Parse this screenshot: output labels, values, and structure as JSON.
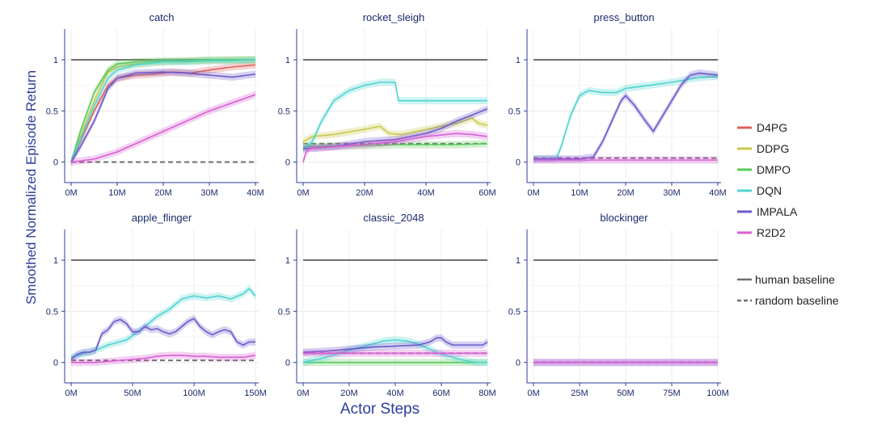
{
  "chart_data": {
    "type": "line",
    "ylabel": "Smoothed Normalized Episode Return",
    "xlabel": "Actor Steps",
    "colors": {
      "D4PG": "#e0605a",
      "DDPG": "#c9c94a",
      "DMPO": "#5cc95a",
      "DQN": "#4fd4d0",
      "IMPALA": "#6a5acd",
      "R2D2": "#d95fd4",
      "human": "#6e6e6e",
      "random": "#6e6e6e"
    },
    "legend": {
      "series": [
        "D4PG",
        "DDPG",
        "DMPO",
        "DQN",
        "IMPALA",
        "R2D2"
      ],
      "baselines": [
        "human baseline",
        "random baseline"
      ]
    },
    "panels": [
      {
        "title": "catch",
        "xticks": [
          "0M",
          "10M",
          "20M",
          "30M",
          "40M"
        ],
        "xlim": [
          0,
          40
        ],
        "ylim": [
          -0.2,
          1.3
        ],
        "yticks": [
          "0",
          "0.5",
          "1"
        ],
        "human": 1,
        "random": 0,
        "series": [
          {
            "name": "D4PG",
            "x": [
              0,
              2,
              5,
              8,
              10,
              14,
              18,
              22,
              26,
              30,
              35,
              40
            ],
            "y": [
              0,
              0.2,
              0.5,
              0.75,
              0.82,
              0.85,
              0.86,
              0.88,
              0.87,
              0.9,
              0.93,
              0.95
            ]
          },
          {
            "name": "DDPG",
            "x": [
              0,
              2,
              5,
              8,
              10,
              14,
              20,
              25,
              30,
              35,
              40
            ],
            "y": [
              0,
              0.25,
              0.6,
              0.88,
              0.93,
              0.96,
              0.98,
              0.99,
              0.99,
              1.0,
              1.0
            ]
          },
          {
            "name": "DMPO",
            "x": [
              0,
              2,
              5,
              8,
              10,
              14,
              20,
              25,
              30,
              35,
              40
            ],
            "y": [
              0,
              0.3,
              0.68,
              0.9,
              0.96,
              0.98,
              0.99,
              0.99,
              1.0,
              1.0,
              1.0
            ]
          },
          {
            "name": "DQN",
            "x": [
              0,
              2,
              5,
              8,
              10,
              14,
              20,
              25,
              30,
              35,
              40
            ],
            "y": [
              0,
              0.22,
              0.55,
              0.82,
              0.9,
              0.95,
              0.98,
              0.98,
              0.99,
              0.99,
              1.0
            ]
          },
          {
            "name": "IMPALA",
            "x": [
              0,
              2,
              5,
              8,
              10,
              14,
              20,
              25,
              30,
              35,
              40
            ],
            "y": [
              0,
              0.15,
              0.4,
              0.72,
              0.82,
              0.87,
              0.88,
              0.87,
              0.85,
              0.83,
              0.86
            ]
          },
          {
            "name": "R2D2",
            "x": [
              0,
              5,
              10,
              15,
              20,
              25,
              30,
              35,
              40
            ],
            "y": [
              0,
              0.03,
              0.1,
              0.2,
              0.3,
              0.4,
              0.5,
              0.58,
              0.66
            ]
          }
        ]
      },
      {
        "title": "rocket_sleigh",
        "xticks": [
          "0M",
          "20M",
          "40M",
          "60M"
        ],
        "xlim": [
          0,
          60
        ],
        "ylim": [
          -0.2,
          1.3
        ],
        "yticks": [
          "0",
          "0.5",
          "1"
        ],
        "human": 1,
        "random": 0.18,
        "series": [
          {
            "name": "DDPG",
            "x": [
              0,
              3,
              10,
              20,
              25,
              28,
              32,
              40,
              50,
              55,
              57,
              60
            ],
            "y": [
              0.2,
              0.25,
              0.27,
              0.32,
              0.35,
              0.28,
              0.27,
              0.32,
              0.38,
              0.43,
              0.38,
              0.36
            ]
          },
          {
            "name": "DMPO",
            "x": [
              0,
              10,
              20,
              30,
              40,
              50,
              60
            ],
            "y": [
              0.15,
              0.16,
              0.16,
              0.17,
              0.17,
              0.17,
              0.18
            ]
          },
          {
            "name": "DQN",
            "x": [
              0,
              3,
              6,
              10,
              15,
              20,
              25,
              30,
              31,
              35,
              40,
              45,
              50,
              55,
              60
            ],
            "y": [
              0.12,
              0.2,
              0.4,
              0.6,
              0.7,
              0.75,
              0.78,
              0.78,
              0.6,
              0.6,
              0.6,
              0.6,
              0.6,
              0.6,
              0.6
            ]
          },
          {
            "name": "IMPALA",
            "x": [
              0,
              10,
              20,
              30,
              40,
              45,
              50,
              55,
              60
            ],
            "y": [
              0.13,
              0.15,
              0.2,
              0.22,
              0.28,
              0.33,
              0.4,
              0.46,
              0.52
            ]
          },
          {
            "name": "R2D2",
            "x": [
              0,
              1,
              2,
              10,
              20,
              30,
              40,
              50,
              55,
              60
            ],
            "y": [
              0.0,
              0.1,
              0.13,
              0.15,
              0.17,
              0.2,
              0.25,
              0.28,
              0.27,
              0.25
            ]
          }
        ]
      },
      {
        "title": "press_button",
        "xticks": [
          "0M",
          "10M",
          "20M",
          "30M",
          "40M"
        ],
        "xlim": [
          0,
          40
        ],
        "ylim": [
          -0.2,
          1.3
        ],
        "yticks": [
          "0",
          "0.5",
          "1"
        ],
        "human": 1,
        "random": 0.04,
        "series": [
          {
            "name": "DQN",
            "x": [
              0,
              5,
              6,
              8,
              10,
              12,
              15,
              18,
              20,
              25,
              30,
              35,
              40
            ],
            "y": [
              0.03,
              0.04,
              0.15,
              0.45,
              0.65,
              0.7,
              0.68,
              0.68,
              0.72,
              0.75,
              0.78,
              0.82,
              0.84
            ]
          },
          {
            "name": "IMPALA",
            "x": [
              0,
              10,
              13,
              15,
              17,
              19,
              20,
              22,
              24,
              26,
              28,
              30,
              32,
              34,
              36,
              40
            ],
            "y": [
              0.03,
              0.03,
              0.05,
              0.2,
              0.4,
              0.6,
              0.65,
              0.55,
              0.42,
              0.3,
              0.45,
              0.6,
              0.75,
              0.85,
              0.87,
              0.85
            ]
          },
          {
            "name": "R2D2",
            "x": [
              0,
              10,
              20,
              30,
              40
            ],
            "y": [
              0.02,
              0.02,
              0.02,
              0.02,
              0.02
            ]
          }
        ]
      },
      {
        "title": "apple_flinger",
        "xticks": [
          "0M",
          "50M",
          "100M",
          "150M"
        ],
        "xlim": [
          0,
          150
        ],
        "ylim": [
          -0.2,
          1.3
        ],
        "yticks": [
          "0",
          "0.5",
          "1"
        ],
        "human": 1,
        "random": 0.02,
        "series": [
          {
            "name": "DQN",
            "x": [
              0,
              20,
              30,
              45,
              60,
              70,
              80,
              90,
              100,
              110,
              120,
              130,
              140,
              145,
              150
            ],
            "y": [
              0.05,
              0.12,
              0.17,
              0.22,
              0.35,
              0.45,
              0.52,
              0.62,
              0.65,
              0.63,
              0.65,
              0.62,
              0.67,
              0.72,
              0.65
            ]
          },
          {
            "name": "IMPALA",
            "x": [
              0,
              5,
              10,
              15,
              20,
              25,
              30,
              35,
              40,
              45,
              50,
              55,
              60,
              65,
              70,
              75,
              80,
              85,
              90,
              95,
              100,
              105,
              110,
              115,
              120,
              125,
              130,
              135,
              140,
              145,
              150
            ],
            "y": [
              0.03,
              0.08,
              0.1,
              0.1,
              0.12,
              0.28,
              0.32,
              0.4,
              0.42,
              0.38,
              0.3,
              0.3,
              0.35,
              0.32,
              0.33,
              0.3,
              0.28,
              0.3,
              0.35,
              0.4,
              0.43,
              0.35,
              0.3,
              0.27,
              0.3,
              0.32,
              0.3,
              0.2,
              0.17,
              0.2,
              0.2
            ]
          },
          {
            "name": "R2D2",
            "x": [
              0,
              20,
              40,
              60,
              70,
              80,
              90,
              100,
              110,
              120,
              130,
              140,
              150
            ],
            "y": [
              0.0,
              0.0,
              0.02,
              0.04,
              0.06,
              0.07,
              0.07,
              0.06,
              0.06,
              0.05,
              0.05,
              0.05,
              0.07
            ]
          }
        ]
      },
      {
        "title": "classic_2048",
        "xticks": [
          "0M",
          "20M",
          "40M",
          "60M",
          "80M"
        ],
        "xlim": [
          0,
          80
        ],
        "ylim": [
          -0.2,
          1.3
        ],
        "yticks": [
          "0",
          "0.5",
          "1"
        ],
        "human": 1,
        "random": 0.09,
        "series": [
          {
            "name": "DMPO",
            "x": [
              0,
              20,
              40,
              60,
              80
            ],
            "y": [
              0.0,
              0.0,
              0.0,
              0.0,
              0.0
            ]
          },
          {
            "name": "DQN",
            "x": [
              0,
              10,
              20,
              30,
              35,
              40,
              45,
              50,
              55,
              60,
              70,
              75,
              80
            ],
            "y": [
              0.0,
              0.05,
              0.12,
              0.18,
              0.21,
              0.22,
              0.21,
              0.18,
              0.13,
              0.08,
              0.02,
              0.0,
              0.0
            ]
          },
          {
            "name": "IMPALA",
            "x": [
              0,
              10,
              20,
              30,
              40,
              50,
              55,
              58,
              60,
              62,
              65,
              70,
              75,
              78,
              80
            ],
            "y": [
              0.1,
              0.11,
              0.13,
              0.15,
              0.16,
              0.17,
              0.2,
              0.24,
              0.24,
              0.2,
              0.17,
              0.17,
              0.17,
              0.17,
              0.2
            ]
          },
          {
            "name": "R2D2",
            "x": [
              0,
              20,
              40,
              60,
              80
            ],
            "y": [
              0.09,
              0.09,
              0.09,
              0.09,
              0.09
            ]
          }
        ]
      },
      {
        "title": "blockinger",
        "xticks": [
          "0M",
          "25M",
          "50M",
          "75M",
          "100M"
        ],
        "xlim": [
          0,
          100
        ],
        "ylim": [
          -0.2,
          1.3
        ],
        "yticks": [
          "0",
          "0.5",
          "1"
        ],
        "human": 1,
        "random": 0,
        "series": [
          {
            "name": "IMPALA",
            "x": [
              0,
              25,
              50,
              75,
              100
            ],
            "y": [
              0.0,
              0.0,
              0.0,
              0.0,
              0.0
            ]
          },
          {
            "name": "R2D2",
            "x": [
              0,
              25,
              50,
              75,
              100
            ],
            "y": [
              0.0,
              0.0,
              0.0,
              0.0,
              0.0
            ]
          }
        ]
      }
    ]
  }
}
